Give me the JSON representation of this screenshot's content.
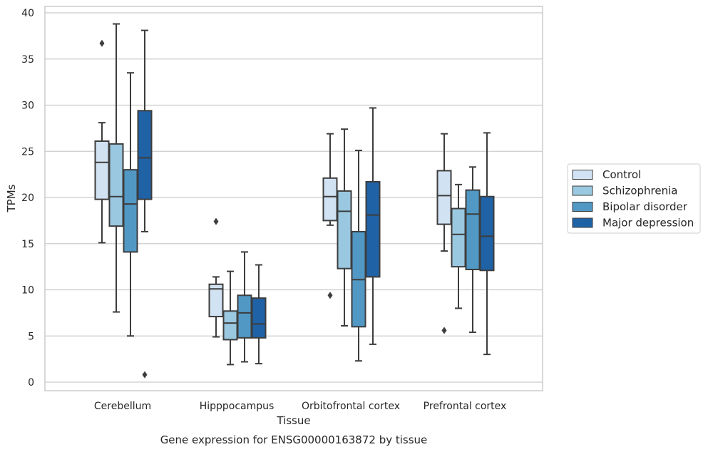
{
  "chart_data": {
    "type": "box",
    "xlabel": "Tissue",
    "ylabel": "TPMs",
    "caption": "Gene expression for ENSG00000163872 by tissue",
    "ylim": [
      -0.8,
      40.6
    ],
    "yticks": [
      0,
      5,
      10,
      15,
      20,
      25,
      30,
      35,
      40
    ],
    "grid": true,
    "legend_position": "right",
    "categories": [
      "Cerebellum",
      "Hipppocampus",
      "Orbitofrontal cortex",
      "Prefrontal cortex"
    ],
    "series": [
      {
        "name": "Control",
        "color": "#d1e2f3",
        "boxes": [
          {
            "whisker_low": 15.1,
            "q1": 19.8,
            "median": 23.8,
            "q3": 26.1,
            "whisker_high": 28.1,
            "outliers": [
              36.7
            ]
          },
          {
            "whisker_low": 4.9,
            "q1": 7.1,
            "median": 10.1,
            "q3": 10.6,
            "whisker_high": 11.4,
            "outliers": [
              17.4
            ]
          },
          {
            "whisker_low": 17.0,
            "q1": 17.5,
            "median": 20.1,
            "q3": 22.1,
            "whisker_high": 26.9,
            "outliers": [
              9.4
            ]
          },
          {
            "whisker_low": 14.2,
            "q1": 17.1,
            "median": 20.2,
            "q3": 22.9,
            "whisker_high": 26.9,
            "outliers": [
              5.6
            ]
          }
        ]
      },
      {
        "name": "Schizophrenia",
        "color": "#9ac8e0",
        "boxes": [
          {
            "whisker_low": 7.6,
            "q1": 16.9,
            "median": 20.1,
            "q3": 25.8,
            "whisker_high": 38.8,
            "outliers": []
          },
          {
            "whisker_low": 1.9,
            "q1": 4.6,
            "median": 6.4,
            "q3": 7.7,
            "whisker_high": 12.0,
            "outliers": []
          },
          {
            "whisker_low": 6.1,
            "q1": 12.3,
            "median": 18.5,
            "q3": 20.7,
            "whisker_high": 27.4,
            "outliers": []
          },
          {
            "whisker_low": 8.0,
            "q1": 12.5,
            "median": 16.0,
            "q3": 18.8,
            "whisker_high": 21.4,
            "outliers": []
          }
        ]
      },
      {
        "name": "Bipolar disorder",
        "color": "#5198c5",
        "boxes": [
          {
            "whisker_low": 5.0,
            "q1": 14.1,
            "median": 19.3,
            "q3": 23.0,
            "whisker_high": 33.5,
            "outliers": []
          },
          {
            "whisker_low": 2.2,
            "q1": 4.8,
            "median": 7.5,
            "q3": 9.4,
            "whisker_high": 14.1,
            "outliers": []
          },
          {
            "whisker_low": 2.3,
            "q1": 6.0,
            "median": 11.1,
            "q3": 16.3,
            "whisker_high": 25.1,
            "outliers": []
          },
          {
            "whisker_low": 5.4,
            "q1": 12.2,
            "median": 18.2,
            "q3": 20.8,
            "whisker_high": 23.3,
            "outliers": []
          }
        ]
      },
      {
        "name": "Major depression",
        "color": "#1f62a5",
        "boxes": [
          {
            "whisker_low": 16.3,
            "q1": 19.8,
            "median": 24.3,
            "q3": 29.4,
            "whisker_high": 38.1,
            "outliers": [
              0.8
            ]
          },
          {
            "whisker_low": 2.0,
            "q1": 4.8,
            "median": 6.3,
            "q3": 9.1,
            "whisker_high": 12.7,
            "outliers": []
          },
          {
            "whisker_low": 4.1,
            "q1": 11.4,
            "median": 18.1,
            "q3": 21.7,
            "whisker_high": 29.7,
            "outliers": []
          },
          {
            "whisker_low": 3.0,
            "q1": 12.1,
            "median": 15.8,
            "q3": 20.1,
            "whisker_high": 27.0,
            "outliers": []
          }
        ]
      }
    ]
  }
}
